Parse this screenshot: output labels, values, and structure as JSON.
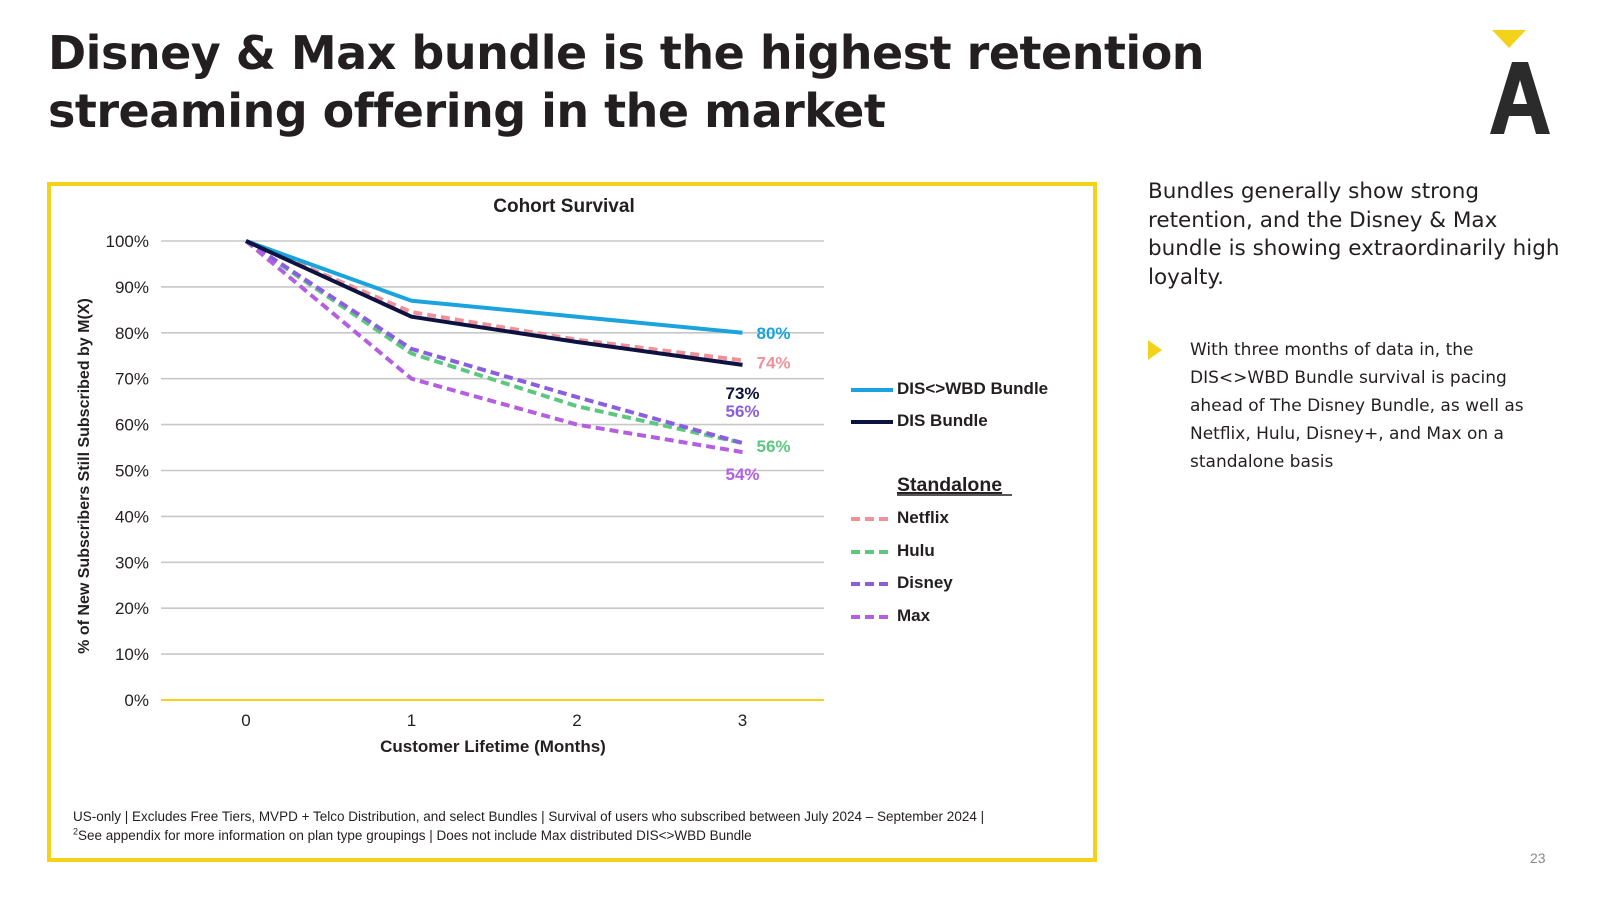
{
  "slide": {
    "title": "Disney & Max bundle is the highest retention streaming offering in the market",
    "page_number": "23",
    "accent_color": "#f5d21a"
  },
  "side_panel": {
    "headline": "Bundles generally show strong retention, and the Disney & Max bundle is showing extraordinarily high loyalty.",
    "bullet": "With three months of data in, the DIS<>WBD Bundle survival is pacing ahead of The Disney Bundle, as well as Netflix, Hulu, Disney+, and Max on a standalone basis"
  },
  "footnote": {
    "line1": "US-only | Excludes Free Tiers, MVPD + Telco Distribution, and select Bundles | Survival of users who subscribed between July 2024 – September 2024 |",
    "superscript": "2",
    "line2": "See appendix for more information on plan type groupings | Does not include Max distributed DIS<>WBD Bundle"
  },
  "chart_data": {
    "type": "line",
    "title": "Cohort Survival",
    "xlabel": "Customer Lifetime (Months)",
    "ylabel": "% of New Subscribers Still Subscribed by M(X)",
    "x": [
      0,
      1,
      2,
      3
    ],
    "ylim": [
      0,
      100
    ],
    "yticks": [
      "0%",
      "10%",
      "20%",
      "30%",
      "40%",
      "50%",
      "60%",
      "70%",
      "80%",
      "90%",
      "100%"
    ],
    "legend_group_label": "Standalone",
    "series": [
      {
        "name": "DIS<>WBD Bundle",
        "values": [
          100,
          87,
          83.5,
          80
        ],
        "color": "#1aa3dc",
        "dashed": false,
        "end_label": "80%"
      },
      {
        "name": "DIS Bundle",
        "values": [
          100,
          83.5,
          78,
          73
        ],
        "color": "#0d1240",
        "dashed": false,
        "end_label": "73%"
      },
      {
        "name": "Netflix",
        "values": [
          100,
          84.5,
          78.5,
          74
        ],
        "color": "#f0919a",
        "dashed": true,
        "end_label": "74%"
      },
      {
        "name": "Hulu",
        "values": [
          100,
          75.5,
          64,
          56
        ],
        "color": "#5cc77f",
        "dashed": true,
        "end_label": "56%"
      },
      {
        "name": "Disney",
        "values": [
          100,
          76.5,
          66,
          56
        ],
        "color": "#8b5ee0",
        "dashed": true,
        "end_label": "56%"
      },
      {
        "name": "Max",
        "values": [
          100,
          70,
          60,
          54
        ],
        "color": "#b35fe0",
        "dashed": true,
        "end_label": "54%"
      }
    ]
  }
}
